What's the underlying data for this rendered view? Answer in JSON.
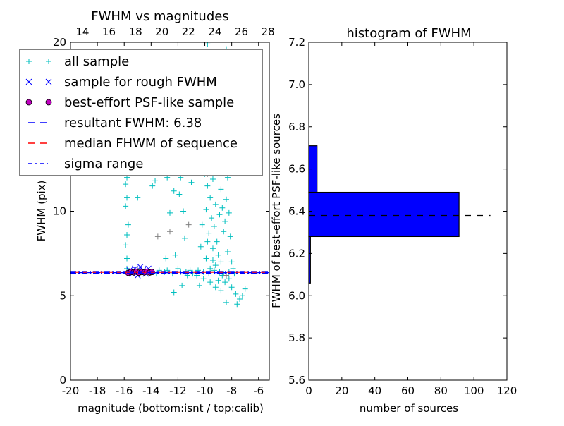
{
  "chart_data": [
    {
      "type": "scatter",
      "title": "FWHM vs magnitudes",
      "xlabel": "magnitude (bottom:isnt / top:calib)",
      "ylabel": "FWHM (pix)",
      "xlim": [
        -20,
        -5.2
      ],
      "ylim": [
        0,
        20
      ],
      "top_xlim": [
        13.1,
        28.1
      ],
      "x_ticks": [
        "-20",
        "-18",
        "-16",
        "-14",
        "-12",
        "-10",
        "-8",
        "-6"
      ],
      "x_tick_values": [
        -20,
        -18,
        -16,
        -14,
        -12,
        -10,
        -8,
        -6
      ],
      "top_x_ticks": [
        "14",
        "16",
        "18",
        "20",
        "22",
        "24",
        "26",
        "28"
      ],
      "top_x_tick_values": [
        14,
        16,
        18,
        20,
        22,
        24,
        26,
        28
      ],
      "y_ticks": [
        "0",
        "5",
        "10",
        "20"
      ],
      "y_tick_values": [
        0,
        5,
        10,
        20
      ],
      "grid": false,
      "legend": {
        "placement": "upper-left",
        "entries": [
          {
            "label": "all sample",
            "marker": "plus",
            "color": "#00bfbf"
          },
          {
            "label": "sample for rough FWHM",
            "marker": "x",
            "color": "#0000ff"
          },
          {
            "label": "best-effort PSF-like sample",
            "marker": "circle",
            "color": "#bf00bf"
          },
          {
            "label": "resultant FWHM: 6.38",
            "marker": "dashed",
            "color": "#0000ff"
          },
          {
            "label": "median FHWM of sequence",
            "marker": "dashed",
            "color": "#ff0000"
          },
          {
            "label": "sigma range",
            "marker": "dashdot",
            "color": "#0000ff"
          }
        ]
      },
      "hlines": {
        "resultant": 6.38,
        "median": 6.4,
        "sigma_low": 6.33,
        "sigma_high": 6.43
      },
      "series": [
        {
          "name": "all sample",
          "color": "#00bfbf",
          "points": [
            [
              -15.8,
              6.6
            ],
            [
              -15.8,
              7.2
            ],
            [
              -15.9,
              8.0
            ],
            [
              -15.8,
              8.6
            ],
            [
              -15.7,
              9.2
            ],
            [
              -15.9,
              10.3
            ],
            [
              -15.8,
              10.8
            ],
            [
              -15.9,
              11.6
            ],
            [
              -15.8,
              12.0
            ],
            [
              -15.7,
              12.5
            ],
            [
              -15.8,
              13.2
            ],
            [
              -15.7,
              14.0
            ],
            [
              -15.2,
              13.6
            ],
            [
              -15.0,
              10.8
            ],
            [
              -13.9,
              11.5
            ],
            [
              -13.7,
              11.8
            ],
            [
              -12.6,
              9.9
            ],
            [
              -12.3,
              11.2
            ],
            [
              -11.9,
              11.0
            ],
            [
              -11.8,
              12.0
            ],
            [
              -11.6,
              10.0
            ],
            [
              -11.0,
              11.7
            ],
            [
              -11.2,
              14.0
            ],
            [
              -11.5,
              8.4
            ],
            [
              -12.2,
              7.4
            ],
            [
              -12.9,
              7.2
            ],
            [
              -12.0,
              6.6
            ],
            [
              -11.7,
              5.6
            ],
            [
              -10.2,
              12.9
            ],
            [
              -10.0,
              12.2
            ],
            [
              -9.8,
              11.5
            ],
            [
              -9.6,
              10.8
            ],
            [
              -9.9,
              10.1
            ],
            [
              -9.5,
              9.6
            ],
            [
              -9.3,
              9.1
            ],
            [
              -9.7,
              8.7
            ],
            [
              -9.1,
              8.2
            ],
            [
              -9.4,
              7.8
            ],
            [
              -9.0,
              7.4
            ],
            [
              -8.8,
              7.0
            ],
            [
              -9.2,
              6.8
            ],
            [
              -8.6,
              8.8
            ],
            [
              -8.5,
              9.4
            ],
            [
              -8.7,
              10.2
            ],
            [
              -8.4,
              10.7
            ],
            [
              -8.8,
              11.3
            ],
            [
              -8.3,
              12.0
            ],
            [
              -8.6,
              12.6
            ],
            [
              -9.0,
              13.2
            ],
            [
              -8.5,
              13.8
            ],
            [
              -8.9,
              14.3
            ],
            [
              -9.3,
              14.8
            ],
            [
              -8.6,
              15.3
            ],
            [
              -9.5,
              16.0
            ],
            [
              -8.8,
              16.8
            ],
            [
              -9.1,
              17.6
            ],
            [
              -8.7,
              18.4
            ],
            [
              -9.6,
              19.2
            ],
            [
              -8.4,
              19.6
            ],
            [
              -10.1,
              18.6
            ],
            [
              -8.2,
              9.9
            ],
            [
              -8.1,
              8.5
            ],
            [
              -8.3,
              7.6
            ],
            [
              -8.0,
              7.0
            ],
            [
              -7.9,
              6.6
            ],
            [
              -8.2,
              6.0
            ],
            [
              -8.0,
              5.5
            ],
            [
              -7.7,
              5.1
            ],
            [
              -7.4,
              4.8
            ],
            [
              -7.2,
              5.0
            ],
            [
              -8.4,
              4.6
            ],
            [
              -7.6,
              4.5
            ],
            [
              -7.0,
              5.4
            ],
            [
              -9.6,
              5.8
            ],
            [
              -9.2,
              5.5
            ],
            [
              -10.1,
              6.0
            ],
            [
              -10.6,
              6.2
            ],
            [
              -10.4,
              5.6
            ],
            [
              -11.1,
              6.5
            ],
            [
              -11.3,
              6.2
            ],
            [
              -12.4,
              6.3
            ],
            [
              -13.0,
              6.4
            ],
            [
              -13.4,
              6.5
            ],
            [
              -13.6,
              6.3
            ],
            [
              -12.8,
              6.5
            ],
            [
              -11.8,
              6.4
            ],
            [
              -11.4,
              6.4
            ],
            [
              -10.9,
              6.3
            ],
            [
              -10.5,
              6.5
            ],
            [
              -10.1,
              6.4
            ],
            [
              -9.7,
              6.3
            ],
            [
              -9.3,
              6.5
            ],
            [
              -8.9,
              6.4
            ],
            [
              -8.6,
              6.3
            ],
            [
              -8.2,
              6.4
            ],
            [
              -7.8,
              6.3
            ],
            [
              -9.9,
              7.2
            ],
            [
              -10.3,
              7.9
            ],
            [
              -9.8,
              8.2
            ],
            [
              -10.2,
              9.2
            ],
            [
              -9.4,
              11.9
            ],
            [
              -9.9,
              13.8
            ],
            [
              -9.3,
              12.6
            ],
            [
              -8.9,
              9.8
            ],
            [
              -9.2,
              10.4
            ],
            [
              -8.7,
              6.2
            ],
            [
              -9.0,
              5.9
            ],
            [
              -8.5,
              5.8
            ],
            [
              -8.8,
              5.3
            ],
            [
              -9.6,
              6.6
            ],
            [
              -9.4,
              7.1
            ],
            [
              -12.8,
              12.0
            ],
            [
              -13.6,
              12.6
            ],
            [
              -12.3,
              5.2
            ],
            [
              -10.3,
              13.5
            ],
            [
              -9.7,
              14.6
            ],
            [
              -10.0,
              15.7
            ],
            [
              -9.2,
              16.4
            ],
            [
              -8.4,
              15.0
            ],
            [
              -8.5,
              14.2
            ],
            [
              -9.8,
              19.9
            ]
          ]
        },
        {
          "name": "all sample (gray)",
          "color": "#808080",
          "points": [
            [
              -15.6,
              13.0
            ],
            [
              -13.5,
              8.5
            ],
            [
              -12.6,
              8.8
            ],
            [
              -11.7,
              13.3
            ],
            [
              -9.8,
              12.2
            ],
            [
              -8.4,
              6.2
            ],
            [
              -15.0,
              6.5
            ],
            [
              -11.2,
              9.2
            ]
          ]
        },
        {
          "name": "sample for rough FWHM",
          "color": "#0000ff",
          "points": [
            [
              -15.6,
              6.5
            ],
            [
              -15.2,
              6.6
            ],
            [
              -15.0,
              6.2
            ],
            [
              -14.8,
              6.7
            ],
            [
              -14.6,
              6.5
            ],
            [
              -14.4,
              6.3
            ],
            [
              -14.2,
              6.6
            ],
            [
              -14.9,
              6.4
            ],
            [
              -15.4,
              6.3
            ],
            [
              -14.0,
              6.4
            ]
          ]
        },
        {
          "name": "best-effort PSF-like sample",
          "color": "#bf00bf",
          "points": [
            [
              -15.7,
              6.35
            ],
            [
              -15.5,
              6.4
            ],
            [
              -15.3,
              6.38
            ],
            [
              -15.1,
              6.42
            ],
            [
              -14.9,
              6.36
            ],
            [
              -14.7,
              6.4
            ],
            [
              -14.5,
              6.38
            ],
            [
              -14.3,
              6.42
            ],
            [
              -14.1,
              6.37
            ],
            [
              -13.95,
              6.4
            ]
          ]
        }
      ]
    },
    {
      "type": "bar",
      "orientation": "horizontal",
      "title": "histogram of FWHM",
      "xlabel": "number of sources",
      "ylabel": "FWHM of best-effort PSF-like sources",
      "xlim": [
        0,
        120
      ],
      "ylim": [
        5.6,
        7.2
      ],
      "x_ticks": [
        "0",
        "20",
        "40",
        "60",
        "80",
        "100",
        "120"
      ],
      "x_tick_values": [
        0,
        20,
        40,
        60,
        80,
        100,
        120
      ],
      "y_ticks": [
        "5.6",
        "5.8",
        "6.0",
        "6.2",
        "6.4",
        "6.6",
        "6.8",
        "7.0",
        "7.2"
      ],
      "y_tick_values": [
        5.6,
        5.8,
        6.0,
        6.2,
        6.4,
        6.6,
        6.8,
        7.0,
        7.2
      ],
      "color": "#0000ff",
      "bins": [
        {
          "from": 6.06,
          "to": 6.28,
          "count": 1
        },
        {
          "from": 6.28,
          "to": 6.49,
          "count": 91
        },
        {
          "from": 6.49,
          "to": 6.71,
          "count": 5
        }
      ],
      "hline": {
        "y": 6.38,
        "xmax": 110,
        "style": "dashed",
        "color": "#000000"
      }
    }
  ]
}
